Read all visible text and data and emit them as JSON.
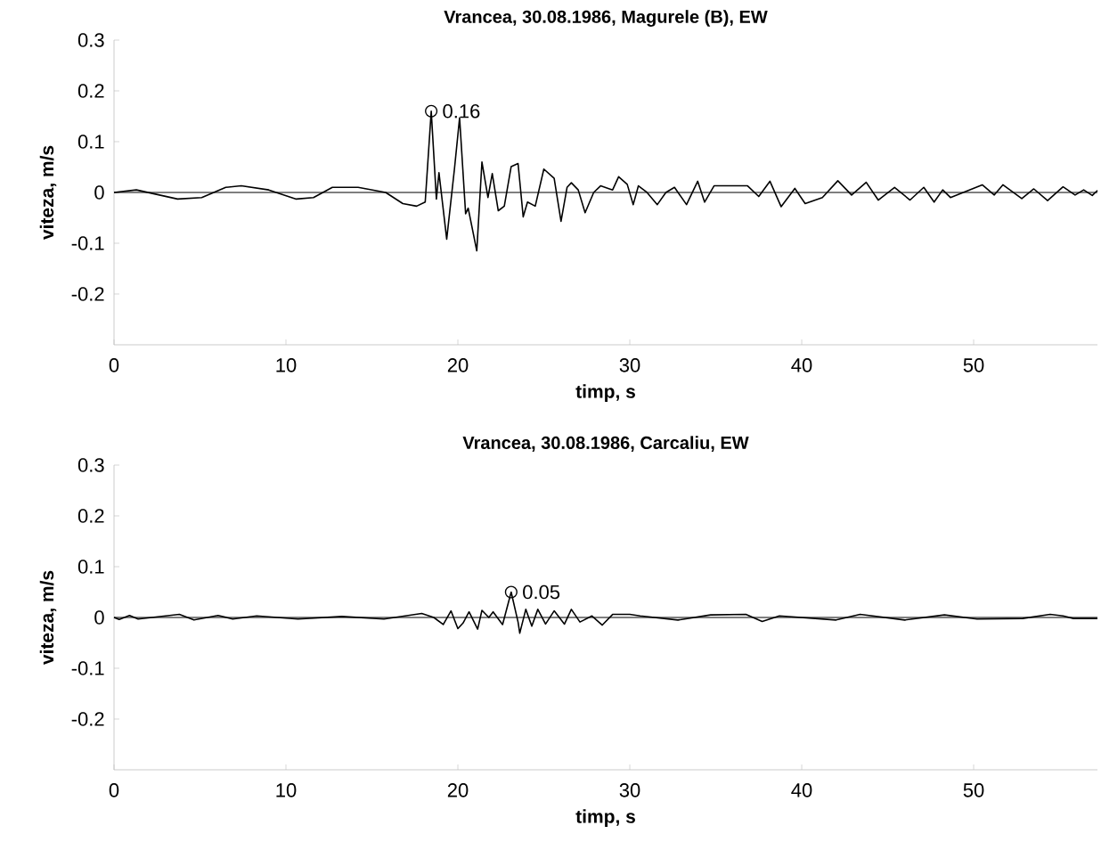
{
  "chart_data": [
    {
      "type": "line",
      "title": "Vrancea, 30.08.1986, Magurele (B), EW",
      "xlabel": "timp, s",
      "ylabel": "viteza, m/s",
      "xlim": [
        0,
        57.2
      ],
      "ylim": [
        -0.3,
        0.3
      ],
      "xticks": [
        0,
        10,
        20,
        30,
        40,
        50
      ],
      "yticks": [
        0.3,
        0.2,
        0.1,
        0,
        -0.1,
        -0.2
      ],
      "ref_lines": [
        {
          "axis": "y",
          "value": 0,
          "color": "#000000"
        }
      ],
      "annotations": [
        {
          "text": "0.16",
          "x": 18.45,
          "y": 0.16
        }
      ],
      "series": [
        {
          "color": "#000000",
          "x": [
            0,
            1.3,
            3.7,
            5.1,
            6.5,
            7.4,
            9.0,
            10.6,
            11.6,
            12.7,
            14.2,
            15.8,
            16.8,
            17.6,
            18.1,
            18.45,
            18.75,
            18.9,
            19.35,
            19.8,
            20.1,
            20.45,
            20.6,
            21.1,
            21.4,
            21.75,
            22.0,
            22.35,
            22.7,
            23.1,
            23.5,
            23.8,
            24.05,
            24.5,
            25.0,
            25.6,
            26.0,
            26.35,
            26.6,
            27.0,
            27.4,
            27.9,
            28.3,
            29.0,
            29.35,
            29.85,
            30.2,
            30.5,
            31.0,
            31.6,
            32.1,
            32.6,
            33.3,
            33.95,
            34.35,
            34.9,
            35.8,
            36.85,
            37.5,
            38.15,
            38.8,
            39.6,
            40.2,
            41.2,
            42.1,
            42.9,
            43.75,
            44.45,
            45.4,
            46.3,
            47.1,
            47.7,
            48.2,
            48.65,
            50.5,
            51.2,
            51.7,
            52.8,
            53.5,
            54.3,
            55.2,
            55.9,
            56.4,
            56.9,
            57.2
          ],
          "values": [
            0,
            0.005,
            -0.013,
            -0.01,
            0.01,
            0.013,
            0.005,
            -0.013,
            -0.01,
            0.01,
            0.01,
            0,
            -0.022,
            -0.027,
            -0.019,
            0.16,
            -0.013,
            0.039,
            -0.092,
            0.046,
            0.147,
            -0.042,
            -0.031,
            -0.115,
            0.06,
            -0.01,
            0.037,
            -0.036,
            -0.027,
            0.051,
            0.057,
            -0.048,
            -0.019,
            -0.027,
            0.046,
            0.028,
            -0.057,
            0.01,
            0.019,
            0.005,
            -0.04,
            0,
            0.013,
            0.005,
            0.031,
            0.016,
            -0.024,
            0.013,
            0,
            -0.024,
            0,
            0.01,
            -0.024,
            0.022,
            -0.019,
            0.013,
            0.013,
            0.013,
            -0.008,
            0.022,
            -0.028,
            0.008,
            -0.022,
            -0.01,
            0.023,
            -0.005,
            0.02,
            -0.015,
            0.01,
            -0.015,
            0.01,
            -0.019,
            0.005,
            -0.01,
            0.015,
            -0.005,
            0.015,
            -0.012,
            0.007,
            -0.016,
            0.011,
            -0.005,
            0.005,
            -0.006,
            0.004
          ]
        }
      ]
    },
    {
      "type": "line",
      "title": "Vrancea, 30.08.1986, Carcaliu, EW",
      "xlabel": "timp, s",
      "ylabel": "viteza, m/s",
      "xlim": [
        0,
        57.2
      ],
      "ylim": [
        -0.3,
        0.3
      ],
      "xticks": [
        0,
        10,
        20,
        30,
        40,
        50
      ],
      "yticks": [
        0.3,
        0.2,
        0.1,
        0,
        -0.1,
        -0.2
      ],
      "ref_lines": [
        {
          "axis": "y",
          "value": 0,
          "color": "#000000"
        }
      ],
      "annotations": [
        {
          "text": "0.05",
          "x": 23.1,
          "y": 0.05
        }
      ],
      "series": [
        {
          "color": "#000000",
          "x": [
            0,
            0.3,
            0.9,
            1.4,
            3.8,
            4.65,
            6.05,
            6.9,
            8.3,
            10.7,
            13.25,
            15.7,
            17.9,
            18.6,
            19.15,
            19.6,
            20.0,
            20.3,
            20.65,
            21.15,
            21.4,
            21.8,
            22.05,
            22.6,
            23.1,
            23.5,
            23.6,
            23.95,
            24.3,
            24.65,
            25.1,
            25.6,
            26.2,
            26.6,
            27.1,
            27.8,
            28.4,
            29.0,
            30.0,
            30.6,
            32.8,
            34.7,
            36.75,
            37.7,
            38.7,
            42.0,
            43.4,
            46.0,
            48.3,
            50.2,
            52.85,
            54.45,
            55.2,
            55.8,
            57.2
          ],
          "values": [
            0,
            -0.004,
            0.004,
            -0.003,
            0.006,
            -0.005,
            0.004,
            -0.003,
            0.003,
            -0.003,
            0.002,
            -0.003,
            0.008,
            0,
            -0.014,
            0.013,
            -0.022,
            -0.011,
            0.011,
            -0.023,
            0.014,
            0,
            0.011,
            -0.014,
            0.05,
            -0.009,
            -0.031,
            0.016,
            -0.017,
            0.016,
            -0.013,
            0.013,
            -0.013,
            0.016,
            -0.009,
            0.003,
            -0.015,
            0.006,
            0.006,
            0.003,
            -0.005,
            0.005,
            0.006,
            -0.008,
            0.003,
            -0.005,
            0.006,
            -0.005,
            0.005,
            -0.003,
            -0.002,
            0.006,
            0.003,
            -0.002,
            -0.002
          ]
        }
      ]
    }
  ]
}
